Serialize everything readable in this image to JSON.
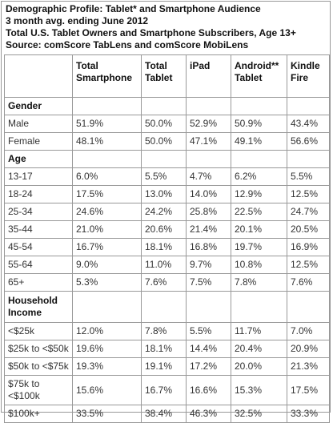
{
  "title": {
    "line1": "Demographic Profile: Tablet* and Smartphone Audience",
    "line2": "3 month avg. ending June 2012",
    "line3": "Total U.S. Tablet Owners and Smartphone Subscribers, Age 13+",
    "line4": "Source: comScore TabLens and comScore MobiLens"
  },
  "columns": [
    "",
    "Total Smartphone",
    "Total Tablet",
    "iPad",
    "Android** Tablet",
    "Kindle Fire"
  ],
  "sections": [
    {
      "label": "Gender",
      "rows": [
        {
          "label": "Male",
          "values": [
            "51.9%",
            "50.0%",
            "52.9%",
            "50.9%",
            "43.4%"
          ]
        },
        {
          "label": "Female",
          "values": [
            "48.1%",
            "50.0%",
            "47.1%",
            "49.1%",
            "56.6%"
          ]
        }
      ]
    },
    {
      "label": "Age",
      "rows": [
        {
          "label": "13-17",
          "values": [
            "6.0%",
            "5.5%",
            "4.7%",
            "6.2%",
            "5.5%"
          ]
        },
        {
          "label": "18-24",
          "values": [
            "17.5%",
            "13.0%",
            "14.0%",
            "12.9%",
            "12.5%"
          ]
        },
        {
          "label": "25-34",
          "values": [
            "24.6%",
            "24.2%",
            "25.8%",
            "22.5%",
            "24.7%"
          ]
        },
        {
          "label": "35-44",
          "values": [
            "21.0%",
            "20.6%",
            "21.4%",
            "20.1%",
            "20.5%"
          ]
        },
        {
          "label": "45-54",
          "values": [
            "16.7%",
            "18.1%",
            "16.8%",
            "19.7%",
            "16.9%"
          ]
        },
        {
          "label": "55-64",
          "values": [
            "9.0%",
            "11.0%",
            "9.7%",
            "10.8%",
            "12.5%"
          ]
        },
        {
          "label": "65+",
          "values": [
            "5.3%",
            "7.6%",
            "7.5%",
            "7.8%",
            "7.6%"
          ]
        }
      ]
    },
    {
      "label": "Household Income",
      "rows": [
        {
          "label": "<$25k",
          "values": [
            "12.0%",
            "7.8%",
            "5.5%",
            "11.7%",
            "7.0%"
          ]
        },
        {
          "label": "$25k to <$50k",
          "values": [
            "19.6%",
            "18.1%",
            "14.4%",
            "20.4%",
            "20.9%"
          ]
        },
        {
          "label": "$50k to <$75k",
          "values": [
            "19.3%",
            "19.1%",
            "17.2%",
            "20.0%",
            "21.3%"
          ]
        },
        {
          "label": "$75k to <$100k",
          "values": [
            "15.6%",
            "16.7%",
            "16.6%",
            "15.3%",
            "17.5%"
          ]
        },
        {
          "label": "$100k+",
          "values": [
            "33.5%",
            "38.4%",
            "46.3%",
            "32.5%",
            "33.3%"
          ]
        }
      ]
    }
  ]
}
